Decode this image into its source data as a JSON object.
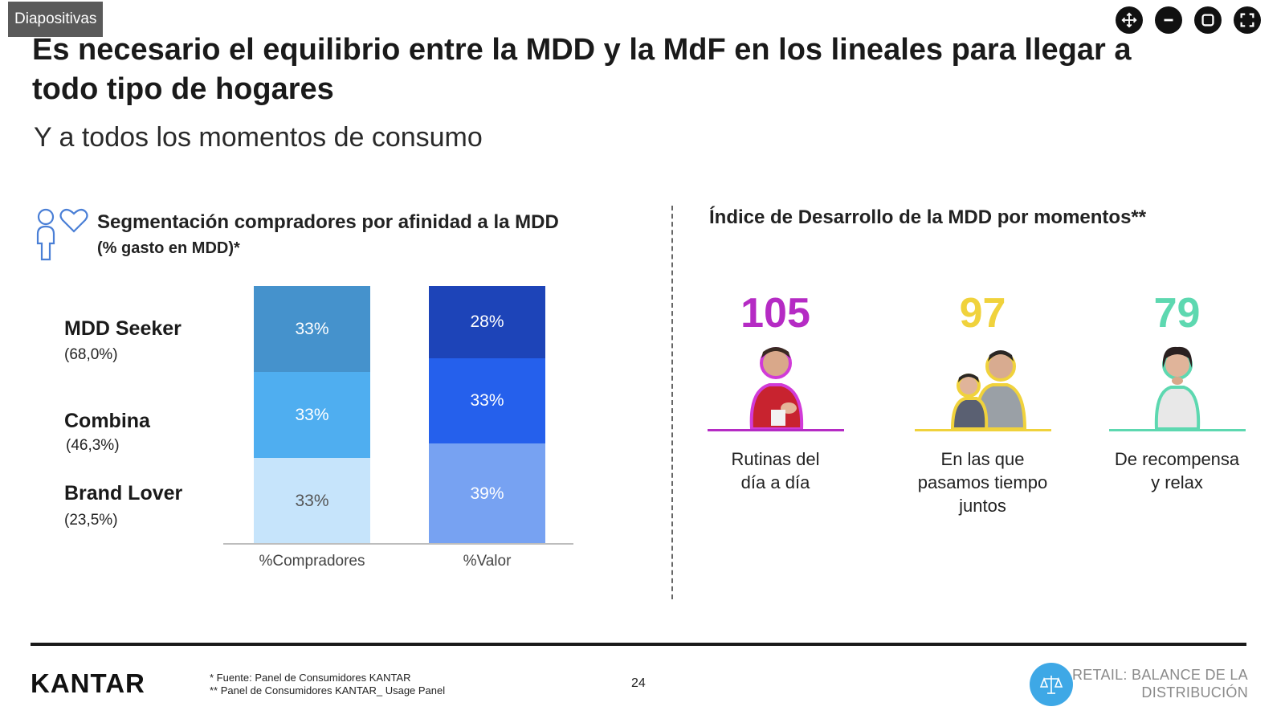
{
  "app": {
    "badge": "Diapositivas",
    "controls": [
      {
        "name": "move",
        "icon": "move-icon"
      },
      {
        "name": "minimize",
        "icon": "minus-icon"
      },
      {
        "name": "restore",
        "icon": "square-icon"
      },
      {
        "name": "fullscreen",
        "icon": "fullscreen-icon"
      }
    ]
  },
  "slide": {
    "title": "Es necesario el equilibrio entre la MDD y la MdF en los lineales para llegar a todo tipo de hogares",
    "subtitle": "Y a todos los momentos de consumo",
    "left": {
      "title": "Segmentación compradores por afinidad a la MDD",
      "subtitle": "(% gasto en MDD)*",
      "segments": [
        {
          "label": "MDD Seeker",
          "share": "(68,0%)"
        },
        {
          "label": "Combina",
          "share": "(46,3%)"
        },
        {
          "label": "Brand Lover",
          "share": "(23,5%)"
        }
      ]
    },
    "right": {
      "title": "Índice de Desarrollo de la MDD por momentos**",
      "moments": [
        {
          "value": "105",
          "label_lines": [
            "Rutinas del",
            "día a día"
          ],
          "color": "#b52bc4"
        },
        {
          "value": "97",
          "label_lines": [
            "En las que",
            "pasamos tiempo",
            "juntos"
          ],
          "color": "#f0d23c"
        },
        {
          "value": "79",
          "label_lines": [
            "De recompensa",
            "y relax"
          ],
          "color": "#5dd8b0"
        }
      ]
    },
    "footer": {
      "brand": "KANTAR",
      "source_1": "* Fuente: Panel de Consumidores KANTAR",
      "source_2": "** Panel de Consumidores KANTAR_ Usage Panel",
      "page": "24",
      "retail_line1": "RETAIL: BALANCE DE LA",
      "retail_line2": "DISTRIBUCIÓN"
    }
  },
  "chart_data": {
    "type": "bar",
    "stacked": true,
    "categories": [
      "%Compradores",
      "%Valor"
    ],
    "series": [
      {
        "name": "MDD Seeker",
        "values": [
          33,
          28
        ],
        "labels": [
          "33%",
          "28%"
        ],
        "colors": [
          "#4592cc",
          "#1d44b8"
        ]
      },
      {
        "name": "Combina",
        "values": [
          33,
          33
        ],
        "labels": [
          "33%",
          "33%"
        ],
        "colors": [
          "#4faef0",
          "#2560ec"
        ]
      },
      {
        "name": "Brand Lover",
        "values": [
          33,
          39
        ],
        "labels": [
          "33%",
          "39%"
        ],
        "colors": [
          "#c6e4fb",
          "#77a2f2"
        ]
      }
    ],
    "ylim": [
      0,
      100
    ]
  }
}
